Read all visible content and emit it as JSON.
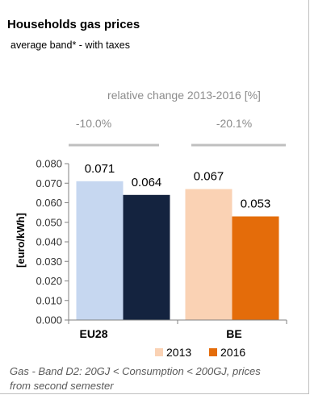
{
  "chart_data": {
    "type": "bar",
    "title": "Households gas prices",
    "subtitle": "average band* - with taxes",
    "relative_change_title": "relative change 2013-2016 [%]",
    "relative_changes": [
      "-10.0%",
      "-20.1%"
    ],
    "categories": [
      "EU28",
      "BE"
    ],
    "ylabel": "[euro/kWh]",
    "ylim": [
      0,
      0.08
    ],
    "yticks": [
      "0.000",
      "0.010",
      "0.020",
      "0.030",
      "0.040",
      "0.050",
      "0.060",
      "0.070",
      "0.080"
    ],
    "series": [
      {
        "name": "2013",
        "values": [
          0.071,
          0.067
        ],
        "labels": [
          "0.071",
          "0.067"
        ],
        "colors": [
          "#c6d7f0",
          "#fad2b4"
        ]
      },
      {
        "name": "2016",
        "values": [
          0.064,
          0.053
        ],
        "labels": [
          "0.064",
          "0.053"
        ],
        "colors": [
          "#14233f",
          "#e46c0a"
        ]
      }
    ],
    "legend": [
      {
        "name": "2013",
        "color": "#fad2b4"
      },
      {
        "name": "2016",
        "color": "#e46c0a"
      }
    ],
    "footnote_lines": [
      "Gas - Band D2: 20GJ < Consumption < 200GJ, prices",
      "from second semester"
    ]
  }
}
